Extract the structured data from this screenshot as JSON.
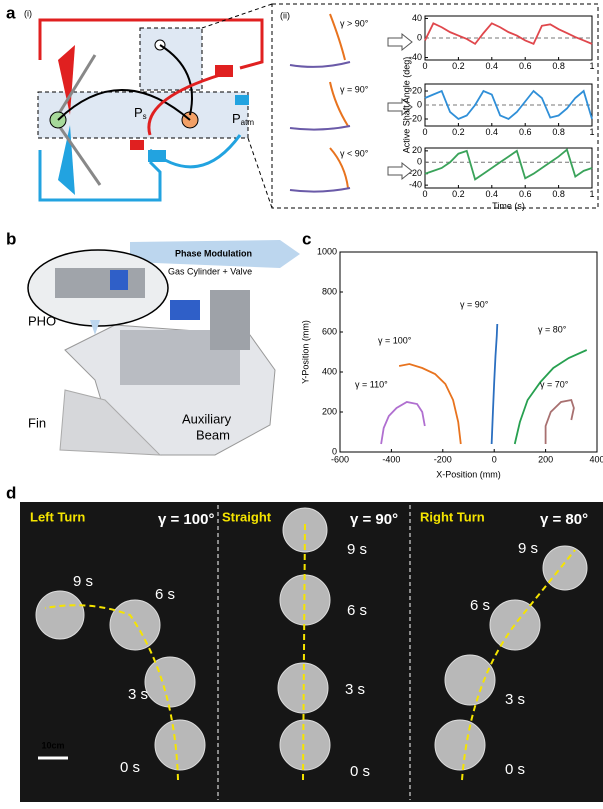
{
  "panel_labels": {
    "a": "a",
    "a_i": "(i)",
    "a_ii": "(ii)",
    "b": "b",
    "c": "c",
    "d": "d"
  },
  "schematic": {
    "ps": {
      "main": "P",
      "sub": "s"
    },
    "patm": {
      "main": "P",
      "sub": "atm"
    },
    "conditions": [
      "γ > 90°",
      "γ = 90°",
      "γ < 90°"
    ]
  },
  "render": {
    "phase": "Phase Modulation",
    "gas": "Gas Cylinder + Valve",
    "pho": "PHO",
    "fin": "Fin",
    "beam": [
      "Auxiliary",
      "Beam"
    ]
  },
  "photos": {
    "scale": "10cm",
    "columns": [
      {
        "title": "Left Turn",
        "gamma": "γ = 100°",
        "times": [
          "0 s",
          "3 s",
          "6 s",
          "9 s"
        ]
      },
      {
        "title": "Straight",
        "gamma": "γ = 90°",
        "times": [
          "0 s",
          "3 s",
          "6 s",
          "9 s"
        ]
      },
      {
        "title": "Right Turn",
        "gamma": "γ = 80°",
        "times": [
          "0 s",
          "3 s",
          "6 s",
          "9 s"
        ]
      }
    ]
  },
  "chart_data": [
    {
      "type": "line",
      "x": [
        0,
        0.05,
        0.1,
        0.15,
        0.2,
        0.25,
        0.3,
        0.35,
        0.4,
        0.45,
        0.5,
        0.55,
        0.6,
        0.65,
        0.7,
        0.75,
        0.8,
        0.85,
        0.9,
        0.95,
        1
      ],
      "series": [
        {
          "color": "#e0474c",
          "values": [
            -5,
            30,
            22,
            12,
            5,
            -2,
            -12,
            10,
            30,
            22,
            12,
            5,
            -5,
            -12,
            25,
            28,
            18,
            10,
            2,
            -5,
            -12
          ]
        }
      ],
      "xlim": [
        0,
        1
      ],
      "xticks": [
        0,
        0.2,
        0.4,
        0.6,
        0.8,
        1
      ],
      "ylim": [
        -45,
        45
      ],
      "yticks": [
        -40,
        0,
        40
      ],
      "reference_line": 0
    },
    {
      "type": "line",
      "ylabel": "Active Shaft Angle (deg)",
      "x": [
        0,
        0.05,
        0.1,
        0.15,
        0.2,
        0.25,
        0.3,
        0.35,
        0.4,
        0.45,
        0.5,
        0.55,
        0.6,
        0.65,
        0.7,
        0.75,
        0.8,
        0.85,
        0.9,
        0.95,
        1
      ],
      "series": [
        {
          "color": "#2f8fd8",
          "values": [
            10,
            15,
            20,
            -10,
            -20,
            -15,
            0,
            20,
            15,
            -15,
            -20,
            -10,
            5,
            20,
            10,
            -18,
            -15,
            -5,
            10,
            20,
            -20
          ]
        }
      ],
      "xlim": [
        0,
        1
      ],
      "xticks": [
        0,
        0.2,
        0.4,
        0.6,
        0.8,
        1
      ],
      "ylim": [
        -30,
        30
      ],
      "yticks": [
        -20,
        0,
        20
      ],
      "reference_line": 0
    },
    {
      "type": "line",
      "xlabel": "Time (s)",
      "x": [
        0,
        0.05,
        0.1,
        0.15,
        0.2,
        0.25,
        0.3,
        0.35,
        0.4,
        0.45,
        0.5,
        0.55,
        0.6,
        0.65,
        0.7,
        0.75,
        0.8,
        0.85,
        0.9,
        0.95,
        1
      ],
      "series": [
        {
          "color": "#3aa35a",
          "values": [
            -20,
            -15,
            -10,
            0,
            15,
            20,
            -30,
            -20,
            -10,
            0,
            10,
            20,
            -28,
            -20,
            -10,
            0,
            10,
            22,
            -25,
            -15,
            -10
          ]
        }
      ],
      "xlim": [
        0,
        1
      ],
      "xticks": [
        0,
        0.2,
        0.4,
        0.6,
        0.8,
        1
      ],
      "ylim": [
        -45,
        25
      ],
      "yticks": [
        -40,
        -20,
        0,
        20
      ],
      "reference_line": 0
    },
    {
      "type": "line",
      "xlabel": "X-Position (mm)",
      "ylabel": "Y-Position (mm)",
      "xlim": [
        -600,
        400
      ],
      "xticks": [
        -600,
        -400,
        -200,
        0,
        200,
        400
      ],
      "ylim": [
        0,
        1000
      ],
      "yticks": [
        0,
        200,
        400,
        600,
        800,
        1000
      ],
      "series": [
        {
          "name": "γ = 110°",
          "color": "#b06fd0",
          "x": [
            -440,
            -430,
            -410,
            -380,
            -340,
            -300,
            -280,
            -270
          ],
          "values": [
            40,
            120,
            180,
            220,
            250,
            240,
            200,
            130
          ]
        },
        {
          "name": "γ = 100°",
          "color": "#e8731e",
          "x": [
            -130,
            -140,
            -160,
            -190,
            -230,
            -280,
            -330,
            -370
          ],
          "values": [
            40,
            150,
            260,
            340,
            390,
            420,
            440,
            430
          ]
        },
        {
          "name": "γ = 90°",
          "color": "#2b6fc0",
          "x": [
            -10,
            -5,
            0,
            5,
            10,
            12
          ],
          "values": [
            40,
            200,
            350,
            480,
            580,
            640
          ]
        },
        {
          "name": "γ = 80°",
          "color": "#27a050",
          "x": [
            80,
            100,
            130,
            180,
            230,
            290,
            360
          ],
          "values": [
            40,
            150,
            260,
            350,
            420,
            470,
            510
          ]
        },
        {
          "name": "γ = 70°",
          "color": "#a87070",
          "x": [
            200,
            200,
            220,
            260,
            300,
            310,
            300
          ],
          "values": [
            40,
            130,
            200,
            250,
            260,
            220,
            160
          ]
        }
      ]
    }
  ]
}
